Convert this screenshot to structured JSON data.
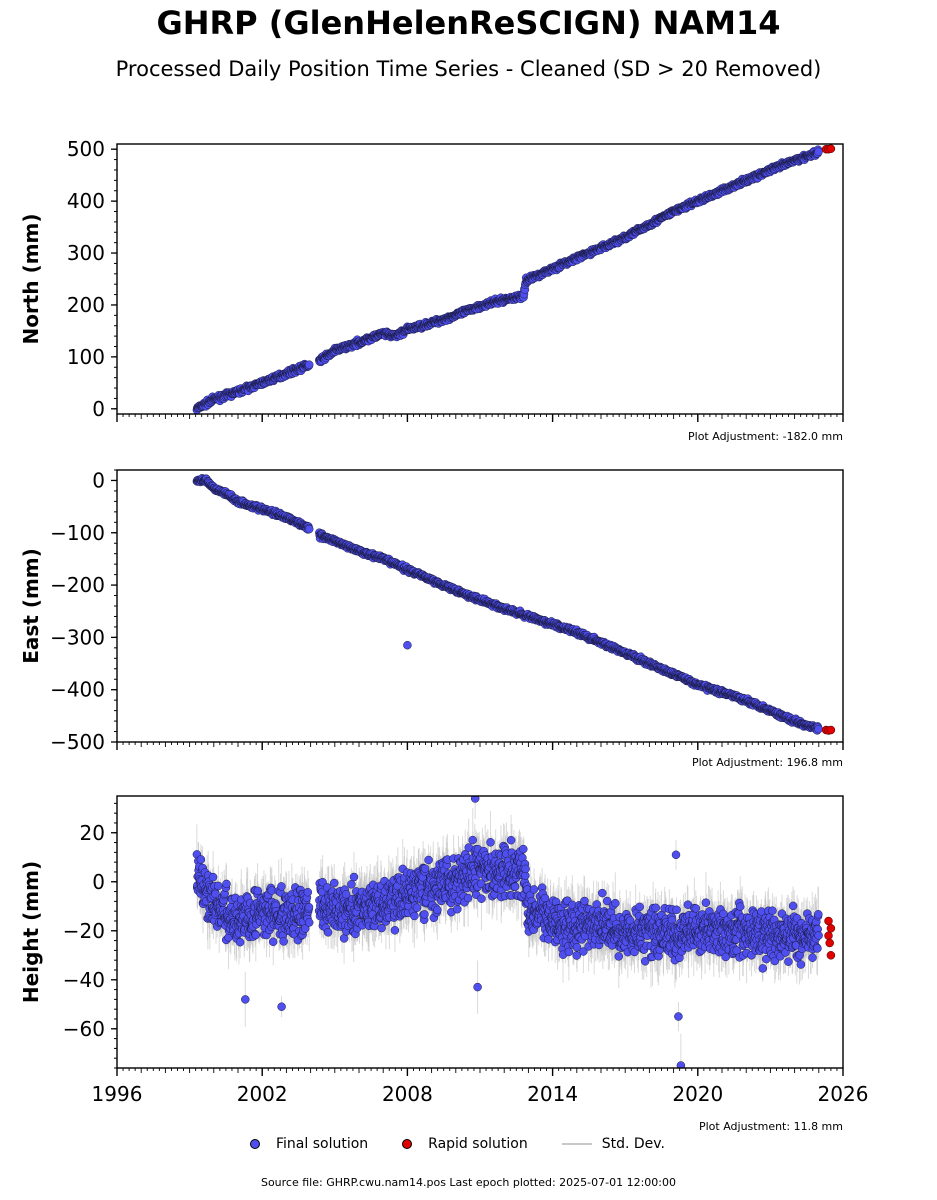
{
  "header": {
    "title": "GHRP (GlenHelenReSCIGN) NAM14",
    "subtitle": "Processed Daily Position Time Series - Cleaned (SD > 20 Removed)"
  },
  "legend": {
    "final": "Final solution",
    "rapid": "Rapid solution",
    "std": "Std. Dev."
  },
  "footer": "Source file: GHRP.cwu.nam14.pos  Last epoch plotted: 2025-07-01 12:00:00",
  "colors": {
    "final": "#4f4ff0",
    "rapid": "#e00000",
    "std": "#bdbdbd"
  },
  "chart_data": [
    {
      "type": "scatter",
      "ylabel": "North (mm)",
      "adjustment": "Plot Adjustment: -182.0 mm",
      "xlim": [
        1996,
        2026
      ],
      "ylim": [
        -10,
        510
      ],
      "yticks": [
        0,
        100,
        200,
        300,
        400,
        500
      ],
      "ytick_labels": [
        "0",
        "100",
        "200",
        "300",
        "400",
        "500"
      ],
      "series": [
        {
          "name": "Final solution",
          "points": [
            [
              1999.3,
              0
            ],
            [
              2000.0,
              18
            ],
            [
              2001.0,
              33
            ],
            [
              2002.0,
              50
            ],
            [
              2003.0,
              68
            ],
            [
              2003.9,
              84
            ],
            [
              2004.4,
              93
            ],
            [
              2005.0,
              112
            ],
            [
              2006.0,
              128
            ],
            [
              2007.0,
              145
            ],
            [
              2007.5,
              140
            ],
            [
              2008.0,
              153
            ],
            [
              2009.0,
              165
            ],
            [
              2010.0,
              180
            ],
            [
              2011.0,
              198
            ],
            [
              2012.0,
              210
            ],
            [
              2012.8,
              217
            ],
            [
              2012.9,
              247
            ],
            [
              2014.0,
              270
            ],
            [
              2015.0,
              290
            ],
            [
              2016.0,
              310
            ],
            [
              2017.0,
              330
            ],
            [
              2018.0,
              355
            ],
            [
              2019.0,
              380
            ],
            [
              2020.0,
              400
            ],
            [
              2021.0,
              420
            ],
            [
              2022.0,
              440
            ],
            [
              2023.0,
              460
            ],
            [
              2024.0,
              478
            ],
            [
              2025.0,
              495
            ]
          ]
        },
        {
          "name": "Rapid solution",
          "points": [
            [
              2025.3,
              500
            ],
            [
              2025.4,
              500
            ],
            [
              2025.5,
              501
            ]
          ]
        }
      ]
    },
    {
      "type": "scatter",
      "ylabel": "East (mm)",
      "adjustment": "Plot Adjustment: 196.8 mm",
      "xlim": [
        1996,
        2026
      ],
      "ylim": [
        -500,
        20
      ],
      "yticks": [
        0,
        -100,
        -200,
        -300,
        -400,
        -500
      ],
      "ytick_labels": [
        "0",
        "−100",
        "−200",
        "−300",
        "−400",
        "−500"
      ],
      "series": [
        {
          "name": "Final solution",
          "points": [
            [
              1999.3,
              0
            ],
            [
              1999.7,
              0
            ],
            [
              2000.0,
              -15
            ],
            [
              2000.5,
              -25
            ],
            [
              2001.0,
              -40
            ],
            [
              2002.0,
              -55
            ],
            [
              2003.0,
              -70
            ],
            [
              2003.9,
              -90
            ],
            [
              2004.4,
              -105
            ],
            [
              2005.0,
              -115
            ],
            [
              2006.0,
              -135
            ],
            [
              2007.0,
              -150
            ],
            [
              2008.0,
              -170
            ],
            [
              2009.0,
              -190
            ],
            [
              2010.0,
              -210
            ],
            [
              2011.0,
              -228
            ],
            [
              2012.0,
              -245
            ],
            [
              2013.0,
              -260
            ],
            [
              2014.0,
              -275
            ],
            [
              2015.0,
              -290
            ],
            [
              2016.0,
              -310
            ],
            [
              2017.0,
              -330
            ],
            [
              2018.0,
              -350
            ],
            [
              2019.0,
              -370
            ],
            [
              2020.0,
              -390
            ],
            [
              2021.0,
              -405
            ],
            [
              2022.0,
              -420
            ],
            [
              2023.0,
              -440
            ],
            [
              2024.0,
              -460
            ],
            [
              2025.0,
              -475
            ]
          ]
        },
        {
          "name": "Rapid solution",
          "points": [
            [
              2025.3,
              -477
            ],
            [
              2025.4,
              -478
            ],
            [
              2025.5,
              -477
            ]
          ]
        }
      ],
      "outliers": [
        [
          2008.0,
          -315
        ]
      ]
    },
    {
      "type": "scatter",
      "ylabel": "Height (mm)",
      "adjustment": "Plot Adjustment: 11.8 mm",
      "xlim": [
        1996,
        2026
      ],
      "ylim": [
        -76,
        35
      ],
      "yticks": [
        20,
        0,
        -20,
        -40,
        -60
      ],
      "ytick_labels": [
        "20",
        "0",
        "−20",
        "−40",
        "−60"
      ],
      "xticks": [
        1996,
        2002,
        2008,
        2014,
        2020,
        2026
      ],
      "xtick_labels": [
        "1996",
        "2002",
        "2008",
        "2014",
        "2020",
        "2026"
      ],
      "series": [
        {
          "name": "Final solution",
          "points": [
            [
              1999.3,
              2
            ],
            [
              2000.0,
              -10
            ],
            [
              2001.0,
              -15
            ],
            [
              2002.0,
              -12
            ],
            [
              2003.0,
              -14
            ],
            [
              2003.9,
              -12
            ],
            [
              2004.4,
              -8
            ],
            [
              2005.0,
              -12
            ],
            [
              2006.0,
              -10
            ],
            [
              2007.0,
              -10
            ],
            [
              2008.0,
              -5
            ],
            [
              2009.0,
              -2
            ],
            [
              2010.0,
              0
            ],
            [
              2011.0,
              5
            ],
            [
              2012.0,
              3
            ],
            [
              2012.8,
              5
            ],
            [
              2013.0,
              -12
            ],
            [
              2014.0,
              -15
            ],
            [
              2015.0,
              -18
            ],
            [
              2016.0,
              -18
            ],
            [
              2017.0,
              -20
            ],
            [
              2018.0,
              -20
            ],
            [
              2019.0,
              -22
            ],
            [
              2020.0,
              -20
            ],
            [
              2021.0,
              -20
            ],
            [
              2022.0,
              -20
            ],
            [
              2023.0,
              -22
            ],
            [
              2024.0,
              -22
            ],
            [
              2025.0,
              -20
            ]
          ]
        },
        {
          "name": "Rapid solution",
          "points": [
            [
              2025.4,
              -16
            ],
            [
              2025.4,
              -22
            ],
            [
              2025.45,
              -25
            ],
            [
              2025.5,
              -30
            ],
            [
              2025.5,
              -19
            ]
          ]
        }
      ],
      "outliers": [
        [
          2001.3,
          -48
        ],
        [
          2002.8,
          -51
        ],
        [
          2010.8,
          34
        ],
        [
          2010.9,
          -43
        ],
        [
          2019.1,
          11
        ],
        [
          2019.2,
          -55
        ],
        [
          2019.3,
          -75
        ]
      ]
    }
  ]
}
